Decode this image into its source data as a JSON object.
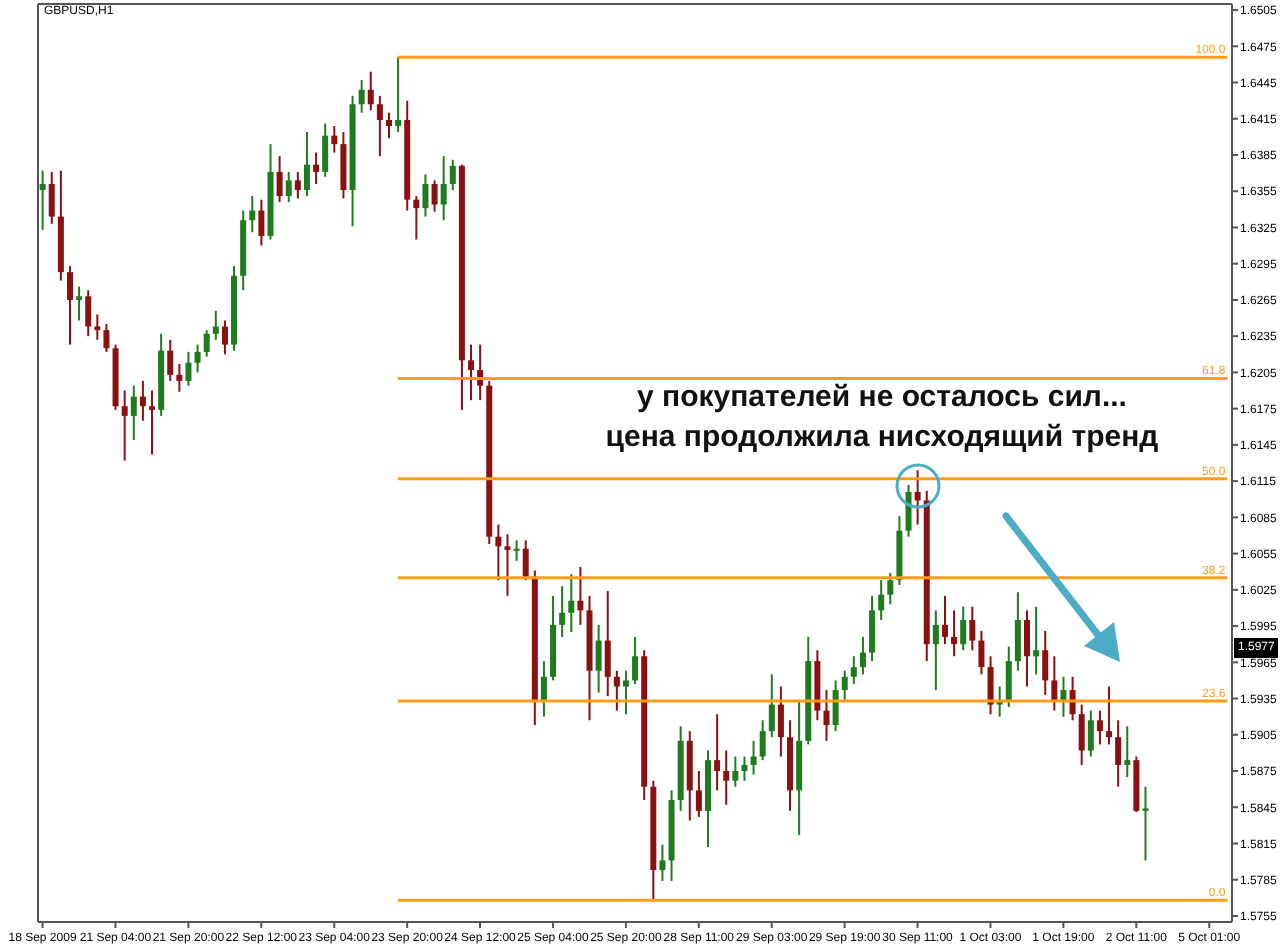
{
  "chart_data": {
    "type": "candlestick",
    "title": "GBPUSD,H1",
    "categories": [
      "18 Sep 2009",
      null,
      null,
      null,
      null,
      null,
      null,
      null,
      "21 Sep 04:00",
      null,
      null,
      null,
      null,
      null,
      null,
      null,
      "21 Sep 20:00",
      null,
      null,
      null,
      null,
      null,
      null,
      null,
      "22 Sep 12:00",
      null,
      null,
      null,
      null,
      null,
      null,
      null,
      "23 Sep 04:00",
      null,
      null,
      null,
      null,
      null,
      null,
      null,
      "23 Sep 20:00",
      null,
      null,
      null,
      null,
      null,
      null,
      null,
      "24 Sep 12:00",
      null,
      null,
      null,
      null,
      null,
      null,
      null,
      "25 Sep 04:00",
      null,
      null,
      null,
      null,
      null,
      null,
      null,
      "25 Sep 20:00",
      null,
      null,
      null,
      null,
      null,
      null,
      null,
      "28 Sep 11:00",
      null,
      null,
      null,
      null,
      null,
      null,
      null,
      "29 Sep 03:00",
      null,
      null,
      null,
      null,
      null,
      null,
      null,
      "29 Sep 19:00",
      null,
      null,
      null,
      null,
      null,
      null,
      null,
      "30 Sep 11:00",
      null,
      null,
      null,
      null,
      null,
      null,
      null,
      "1 Oct 03:00",
      null,
      null,
      null,
      null,
      null,
      null,
      null,
      "1 Oct 19:00",
      null,
      null,
      null,
      null,
      null,
      null,
      null,
      "2 Oct 11:00",
      null,
      null,
      null,
      null,
      null,
      null,
      null,
      "5 Oct 01:00",
      null,
      null
    ],
    "ohlc": [
      [
        1.6356,
        1.6372,
        1.6323,
        1.6361
      ],
      [
        1.6361,
        1.6371,
        1.6328,
        1.6334
      ],
      [
        1.6334,
        1.6372,
        1.6281,
        1.6288
      ],
      [
        1.6288,
        1.6293,
        1.6228,
        1.6265
      ],
      [
        1.6265,
        1.6276,
        1.6248,
        1.6268
      ],
      [
        1.6268,
        1.6273,
        1.6235,
        1.6243
      ],
      [
        1.6243,
        1.6253,
        1.6232,
        1.624
      ],
      [
        1.624,
        1.6245,
        1.6222,
        1.6225
      ],
      [
        1.6225,
        1.6228,
        1.6174,
        1.6177
      ],
      [
        1.6177,
        1.619,
        1.6132,
        1.6169
      ],
      [
        1.6169,
        1.6194,
        1.6149,
        1.6185
      ],
      [
        1.6185,
        1.6198,
        1.6165,
        1.6177
      ],
      [
        1.6177,
        1.619,
        1.6137,
        1.6174
      ],
      [
        1.6174,
        1.6237,
        1.6169,
        1.6223
      ],
      [
        1.6223,
        1.6232,
        1.6198,
        1.6203
      ],
      [
        1.6203,
        1.6212,
        1.6189,
        1.6198
      ],
      [
        1.6198,
        1.6222,
        1.6194,
        1.6213
      ],
      [
        1.6213,
        1.6228,
        1.6205,
        1.6222
      ],
      [
        1.6222,
        1.624,
        1.6218,
        1.6237
      ],
      [
        1.6237,
        1.6256,
        1.6232,
        1.6243
      ],
      [
        1.6243,
        1.6248,
        1.622,
        1.6228
      ],
      [
        1.6228,
        1.6293,
        1.6223,
        1.6285
      ],
      [
        1.6285,
        1.6339,
        1.6273,
        1.6331
      ],
      [
        1.6331,
        1.6351,
        1.6321,
        1.6339
      ],
      [
        1.6339,
        1.6348,
        1.631,
        1.6318
      ],
      [
        1.6318,
        1.6394,
        1.6315,
        1.6371
      ],
      [
        1.6371,
        1.6384,
        1.6346,
        1.6351
      ],
      [
        1.6351,
        1.6371,
        1.6346,
        1.6364
      ],
      [
        1.6364,
        1.6371,
        1.6349,
        1.6356
      ],
      [
        1.6356,
        1.6404,
        1.6351,
        1.6377
      ],
      [
        1.6377,
        1.6387,
        1.6361,
        1.6371
      ],
      [
        1.6371,
        1.6411,
        1.6367,
        1.6401
      ],
      [
        1.6401,
        1.6409,
        1.6387,
        1.6394
      ],
      [
        1.6394,
        1.6404,
        1.6349,
        1.6356
      ],
      [
        1.6356,
        1.6434,
        1.6326,
        1.6427
      ],
      [
        1.6427,
        1.6447,
        1.642,
        1.6439
      ],
      [
        1.6439,
        1.6454,
        1.6422,
        1.6427
      ],
      [
        1.6427,
        1.6434,
        1.6384,
        1.6414
      ],
      [
        1.6414,
        1.642,
        1.6399,
        1.6409
      ],
      [
        1.6409,
        1.6466,
        1.6404,
        1.6414
      ],
      [
        1.6414,
        1.643,
        1.6339,
        1.6348
      ],
      [
        1.6348,
        1.6351,
        1.6315,
        1.6341
      ],
      [
        1.6341,
        1.6369,
        1.6334,
        1.6361
      ],
      [
        1.6361,
        1.6364,
        1.6338,
        1.6344
      ],
      [
        1.6344,
        1.6384,
        1.6331,
        1.6361
      ],
      [
        1.6361,
        1.6381,
        1.6356,
        1.6376
      ],
      [
        1.6376,
        1.6377,
        1.6174,
        1.6215
      ],
      [
        1.6215,
        1.6228,
        1.6182,
        1.6207
      ],
      [
        1.6207,
        1.6228,
        1.6182,
        1.6194
      ],
      [
        1.6194,
        1.6198,
        1.6063,
        1.6069
      ],
      [
        1.6069,
        1.6079,
        1.6033,
        1.6061
      ],
      [
        1.6061,
        1.6071,
        1.602,
        1.6058
      ],
      [
        1.6058,
        1.6066,
        1.6049,
        1.6059
      ],
      [
        1.6059,
        1.6066,
        1.6033,
        1.6036
      ],
      [
        1.6036,
        1.6041,
        1.5913,
        1.5933
      ],
      [
        1.5933,
        1.5966,
        1.592,
        1.5953
      ],
      [
        1.5953,
        1.602,
        1.595,
        1.5996
      ],
      [
        1.5996,
        1.6028,
        1.5986,
        1.6006
      ],
      [
        1.6006,
        1.6038,
        1.599,
        1.6016
      ],
      [
        1.6016,
        1.6044,
        1.5996,
        1.6008
      ],
      [
        1.6008,
        1.602,
        1.5917,
        1.5958
      ],
      [
        1.5958,
        1.5996,
        1.594,
        1.5983
      ],
      [
        1.5983,
        1.6024,
        1.5937,
        1.5953
      ],
      [
        1.5953,
        1.5958,
        1.5925,
        1.5945
      ],
      [
        1.5945,
        1.5958,
        1.5922,
        1.595
      ],
      [
        1.595,
        1.5986,
        1.5947,
        1.597
      ],
      [
        1.597,
        1.5975,
        1.5851,
        1.5862
      ],
      [
        1.5862,
        1.5867,
        1.5768,
        1.5793
      ],
      [
        1.5793,
        1.5814,
        1.5784,
        1.5801
      ],
      [
        1.5801,
        1.5859,
        1.5784,
        1.5851
      ],
      [
        1.5851,
        1.5912,
        1.5842,
        1.59
      ],
      [
        1.59,
        1.5908,
        1.5834,
        1.5859
      ],
      [
        1.5859,
        1.5875,
        1.5837,
        1.5842
      ],
      [
        1.5842,
        1.5892,
        1.5812,
        1.5884
      ],
      [
        1.5884,
        1.5922,
        1.5859,
        1.5875
      ],
      [
        1.5875,
        1.5892,
        1.5847,
        1.5867
      ],
      [
        1.5867,
        1.5887,
        1.5862,
        1.5875
      ],
      [
        1.5875,
        1.5887,
        1.5867,
        1.588
      ],
      [
        1.588,
        1.59,
        1.5872,
        1.5887
      ],
      [
        1.5887,
        1.5917,
        1.5884,
        1.5908
      ],
      [
        1.5908,
        1.5955,
        1.5903,
        1.593
      ],
      [
        1.593,
        1.5945,
        1.5887,
        1.5903
      ],
      [
        1.5903,
        1.5917,
        1.5842,
        1.5859
      ],
      [
        1.5859,
        1.5933,
        1.5822,
        1.59
      ],
      [
        1.59,
        1.5986,
        1.5897,
        1.5966
      ],
      [
        1.5966,
        1.5975,
        1.5917,
        1.5925
      ],
      [
        1.5925,
        1.5942,
        1.59,
        1.5913
      ],
      [
        1.5913,
        1.595,
        1.5908,
        1.5942
      ],
      [
        1.5942,
        1.5958,
        1.5933,
        1.5953
      ],
      [
        1.5953,
        1.597,
        1.5947,
        1.5961
      ],
      [
        1.5961,
        1.5986,
        1.5955,
        1.5973
      ],
      [
        1.5973,
        1.602,
        1.5966,
        1.6008
      ],
      [
        1.6008,
        1.6033,
        1.6,
        1.6021
      ],
      [
        1.6021,
        1.6039,
        1.6013,
        1.6033
      ],
      [
        1.6033,
        1.6086,
        1.6029,
        1.6074
      ],
      [
        1.6074,
        1.6112,
        1.6069,
        1.6106
      ],
      [
        1.6106,
        1.6124,
        1.6079,
        1.6099
      ],
      [
        1.6099,
        1.6107,
        1.5966,
        1.598
      ],
      [
        1.598,
        1.6008,
        1.5942,
        1.5996
      ],
      [
        1.5996,
        1.602,
        1.598,
        1.5986
      ],
      [
        1.5986,
        1.6008,
        1.597,
        1.598
      ],
      [
        1.598,
        1.6011,
        1.5975,
        1.6
      ],
      [
        1.6,
        1.6011,
        1.5975,
        1.5983
      ],
      [
        1.5983,
        1.5991,
        1.5955,
        1.5961
      ],
      [
        1.5961,
        1.597,
        1.5922,
        1.593
      ],
      [
        1.593,
        1.5945,
        1.592,
        1.5933
      ],
      [
        1.5933,
        1.5978,
        1.5928,
        1.5966
      ],
      [
        1.5966,
        1.6023,
        1.5958,
        1.6
      ],
      [
        1.6,
        1.6008,
        1.5945,
        1.597
      ],
      [
        1.597,
        1.6011,
        1.5955,
        1.5975
      ],
      [
        1.5975,
        1.5991,
        1.5938,
        1.595
      ],
      [
        1.595,
        1.597,
        1.5925,
        1.5933
      ],
      [
        1.5933,
        1.5953,
        1.592,
        1.5942
      ],
      [
        1.5942,
        1.5953,
        1.5917,
        1.5922
      ],
      [
        1.5922,
        1.593,
        1.588,
        1.5892
      ],
      [
        1.5892,
        1.5925,
        1.5887,
        1.5917
      ],
      [
        1.5917,
        1.5925,
        1.5897,
        1.5908
      ],
      [
        1.5908,
        1.5945,
        1.5897,
        1.5903
      ],
      [
        1.5903,
        1.5917,
        1.5862,
        1.588
      ],
      [
        1.588,
        1.5912,
        1.587,
        1.5884
      ],
      [
        1.5884,
        1.5887,
        1.5841,
        1.5842
      ],
      [
        1.5842,
        1.5862,
        1.5801,
        1.5844
      ],
      null,
      null,
      null,
      null,
      null,
      null,
      null,
      null,
      null
    ],
    "colors": [
      "#1e7b1e",
      "#8b1010",
      "#8b1010",
      "#8b1010",
      "#1e7b1e",
      "#8b1010",
      "#8b1010",
      "#8b1010",
      "#8b1010",
      "#8b1010",
      "#1e7b1e",
      "#8b1010",
      "#8b1010",
      "#1e7b1e",
      "#8b1010",
      "#8b1010",
      "#1e7b1e",
      "#1e7b1e",
      "#1e7b1e",
      "#1e7b1e",
      "#8b1010",
      "#1e7b1e",
      "#1e7b1e",
      "#1e7b1e",
      "#8b1010",
      "#1e7b1e",
      "#8b1010",
      "#1e7b1e",
      "#8b1010",
      "#1e7b1e",
      "#8b1010",
      "#1e7b1e",
      "#8b1010",
      "#8b1010",
      "#1e7b1e",
      "#1e7b1e",
      "#8b1010",
      "#8b1010",
      "#8b1010",
      "#1e7b1e",
      "#8b1010",
      "#8b1010",
      "#1e7b1e",
      "#8b1010",
      "#1e7b1e",
      "#1e7b1e",
      "#8b1010",
      "#8b1010",
      "#8b1010",
      "#8b1010",
      "#8b1010",
      "#8b1010",
      "#1e7b1e",
      "#8b1010",
      "#8b1010",
      "#1e7b1e",
      "#1e7b1e",
      "#1e7b1e",
      "#1e7b1e",
      "#8b1010",
      "#8b1010",
      "#1e7b1e",
      "#8b1010",
      "#8b1010",
      "#1e7b1e",
      "#1e7b1e",
      "#8b1010",
      "#8b1010",
      "#1e7b1e",
      "#1e7b1e",
      "#1e7b1e",
      "#8b1010",
      "#8b1010",
      "#1e7b1e",
      "#8b1010",
      "#8b1010",
      "#1e7b1e",
      "#1e7b1e",
      "#1e7b1e",
      "#1e7b1e",
      "#1e7b1e",
      "#8b1010",
      "#8b1010",
      "#1e7b1e",
      "#1e7b1e",
      "#8b1010",
      "#8b1010",
      "#1e7b1e",
      "#1e7b1e",
      "#1e7b1e",
      "#1e7b1e",
      "#1e7b1e",
      "#1e7b1e",
      "#1e7b1e",
      "#1e7b1e",
      "#1e7b1e",
      "#8b1010",
      "#8b1010",
      "#1e7b1e",
      "#8b1010",
      "#8b1010",
      "#1e7b1e",
      "#8b1010",
      "#8b1010",
      "#8b1010",
      "#1e7b1e",
      "#1e7b1e",
      "#1e7b1e",
      "#8b1010",
      "#1e7b1e",
      "#8b1010",
      "#8b1010",
      "#1e7b1e",
      "#8b1010",
      "#8b1010",
      "#1e7b1e",
      "#8b1010",
      "#8b1010",
      "#8b1010",
      "#1e7b1e",
      "#8b1010",
      "#1e7b1e",
      null,
      null,
      null,
      null,
      null,
      null,
      null,
      null,
      null
    ],
    "ylim": [
      1.575,
      1.651
    ],
    "yticks": [
      1.5755,
      1.5785,
      1.5815,
      1.5845,
      1.5875,
      1.5905,
      1.5935,
      1.5965,
      1.5995,
      1.6025,
      1.6055,
      1.6085,
      1.6115,
      1.6145,
      1.6175,
      1.6205,
      1.6235,
      1.6265,
      1.6295,
      1.6325,
      1.6355,
      1.6385,
      1.6415,
      1.6445,
      1.6475,
      1.6505
    ],
    "ref_lines": [
      {
        "axis": "y",
        "value": 1.6466,
        "color": "#ff9c1a"
      },
      {
        "axis": "y",
        "value": 1.62,
        "color": "#ff9c1a"
      },
      {
        "axis": "y",
        "value": 1.6117,
        "color": "#ff9c1a"
      },
      {
        "axis": "y",
        "value": 1.6035,
        "color": "#ff9c1a"
      },
      {
        "axis": "y",
        "value": 1.5933,
        "color": "#ff9c1a"
      },
      {
        "axis": "y",
        "value": 1.5768,
        "color": "#ff9c1a"
      }
    ],
    "annotations": [
      "у покупателей не осталось сил...",
      "цена продолжила нисходящий тренд",
      {
        "text": "100.0",
        "y": 1.6466
      },
      {
        "text": "61.8",
        "y": 1.62
      },
      {
        "text": "50.0",
        "y": 1.6117
      },
      {
        "text": "38.2",
        "y": 1.6035
      },
      {
        "text": "23.6",
        "y": 1.5933
      },
      {
        "text": "0.0",
        "y": 1.5768
      },
      {
        "text": "1.5977",
        "y": 1.5977
      }
    ]
  }
}
